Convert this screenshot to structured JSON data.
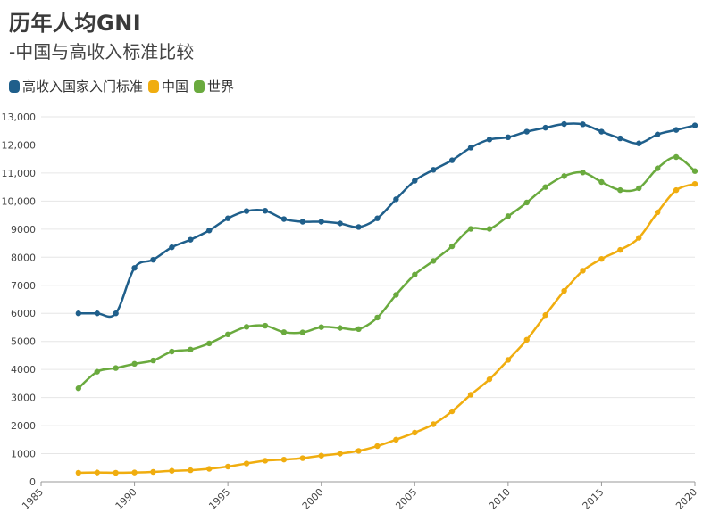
{
  "header": {
    "title": "历年人均GNI",
    "subtitle": "-中国与高收入标准比较"
  },
  "colors": {
    "high_income": "#1f5f8b",
    "china": "#f0ad0f",
    "world": "#6aaa3e",
    "grid": "#e6e6e6",
    "axis": "#999999"
  },
  "chart_data": {
    "type": "line",
    "title": "历年人均GNI",
    "subtitle": "-中国与高收入标准比较",
    "legend_position": "top-left",
    "grid": true,
    "xlim": [
      1985,
      2020
    ],
    "ylim": [
      0,
      13000
    ],
    "x_ticks": [
      "1985",
      "1990",
      "1995",
      "2000",
      "2005",
      "2010",
      "2015",
      "2020"
    ],
    "y_ticks": [
      "0",
      "1000",
      "2000",
      "3000",
      "4000",
      "5000",
      "6000",
      "7000",
      "8000",
      "9000",
      "10,000",
      "11,000",
      "12,000",
      "13,000"
    ],
    "x": [
      1987,
      1988,
      1989,
      1990,
      1991,
      1992,
      1993,
      1994,
      1995,
      1996,
      1997,
      1998,
      1999,
      2000,
      2001,
      2002,
      2003,
      2004,
      2005,
      2006,
      2007,
      2008,
      2009,
      2010,
      2011,
      2012,
      2013,
      2014,
      2015,
      2016,
      2017,
      2018,
      2019,
      2020
    ],
    "series": [
      {
        "name": "高收入国家入门标准",
        "color": "#1f5f8b",
        "values": [
          6000,
          6000,
          6000,
          7620,
          7910,
          8355,
          8625,
          8955,
          9385,
          9645,
          9655,
          9360,
          9265,
          9265,
          9205,
          9075,
          9385,
          10065,
          10725,
          11115,
          11455,
          11905,
          12195,
          12275,
          12475,
          12615,
          12745,
          12735,
          12475,
          12235,
          12055,
          12375,
          12535,
          12695
        ]
      },
      {
        "name": "中国",
        "color": "#f0ad0f",
        "values": [
          320,
          330,
          320,
          330,
          350,
          390,
          410,
          460,
          540,
          650,
          750,
          790,
          840,
          930,
          1000,
          1100,
          1270,
          1500,
          1750,
          2050,
          2510,
          3100,
          3650,
          4340,
          5060,
          5940,
          6800,
          7520,
          7940,
          8260,
          8690,
          9600,
          10390,
          10610
        ]
      },
      {
        "name": "世界",
        "color": "#6aaa3e",
        "values": [
          3330,
          3920,
          4050,
          4200,
          4320,
          4640,
          4710,
          4930,
          5250,
          5520,
          5560,
          5330,
          5320,
          5510,
          5480,
          5440,
          5850,
          6660,
          7380,
          7870,
          8390,
          9010,
          9010,
          9460,
          9950,
          10500,
          10890,
          11020,
          10680,
          10390,
          10460,
          11170,
          11570,
          11070
        ]
      }
    ]
  }
}
